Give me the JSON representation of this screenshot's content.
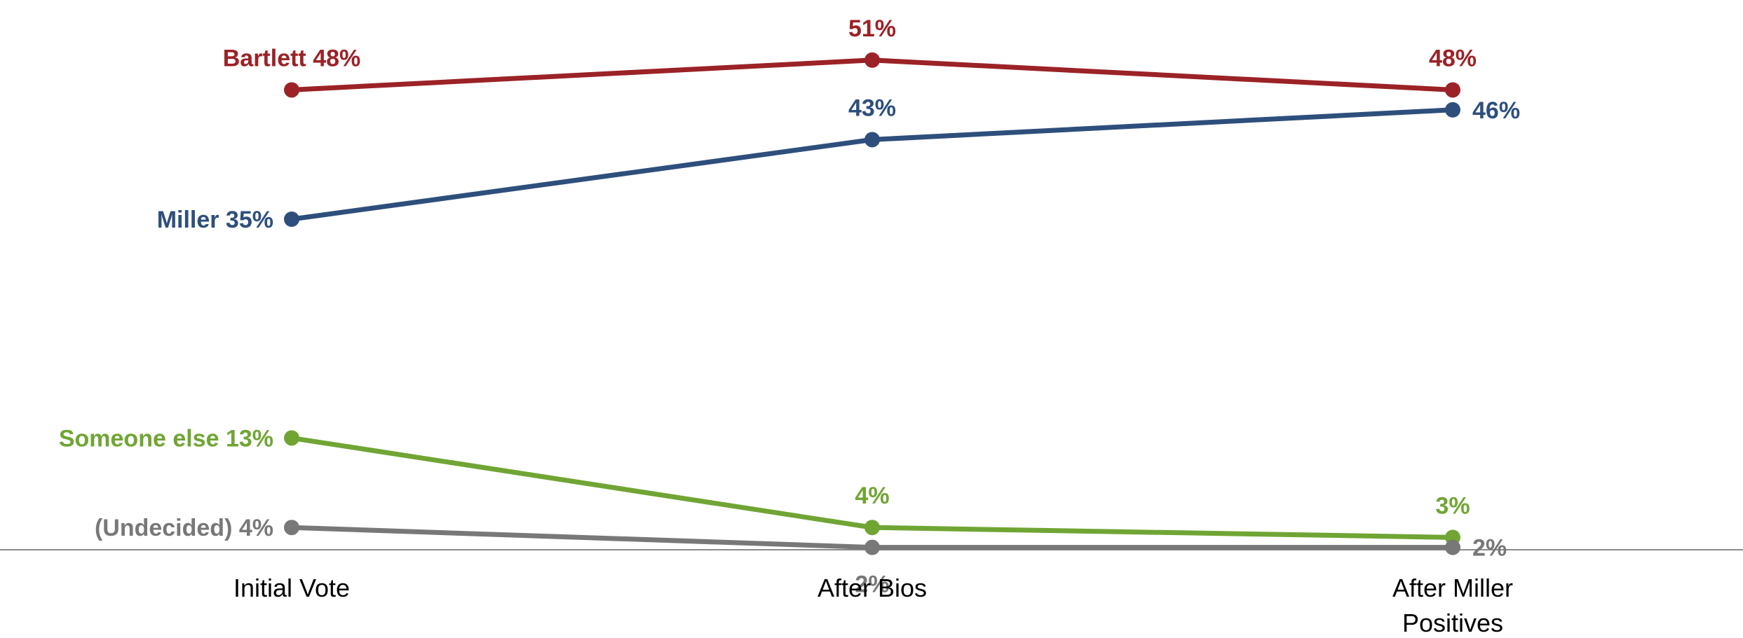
{
  "chart_data": {
    "type": "line",
    "categories": [
      "Initial Vote",
      "After Bios",
      "After Miller Positives"
    ],
    "category_lines": [
      [
        "Initial Vote"
      ],
      [
        "After Bios"
      ],
      [
        "After Miller",
        "Positives"
      ]
    ],
    "ylim": [
      0,
      60
    ],
    "grid": false,
    "legend": "none (series labelled at first point)",
    "series": [
      {
        "name": "Bartlett",
        "color": "#9b2226",
        "values": [
          48,
          51,
          48
        ],
        "value_labels": [
          "Bartlett 48%",
          "51%",
          "48%"
        ]
      },
      {
        "name": "Miller",
        "color": "#2e4f7c",
        "values": [
          35,
          43,
          46
        ],
        "value_labels": [
          "Miller 35%",
          "43%",
          "46%"
        ]
      },
      {
        "name": "Someone else",
        "color": "#70a534",
        "values": [
          13,
          4,
          3
        ],
        "value_labels": [
          "Someone else 13%",
          "4%",
          "3%"
        ]
      },
      {
        "name": "(Undecided)",
        "color": "#787878",
        "values": [
          4,
          2,
          2
        ],
        "value_labels": [
          "(Undecided) 4%",
          "2%",
          "2%"
        ]
      }
    ]
  }
}
